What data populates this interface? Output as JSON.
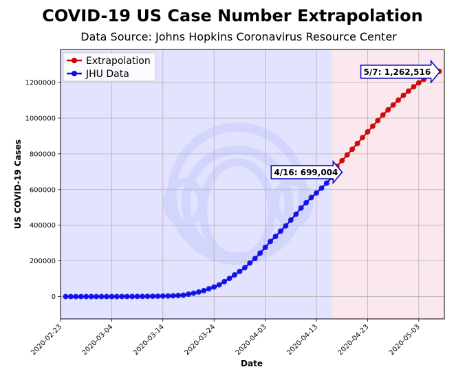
{
  "chart_data": {
    "type": "line",
    "title": "COVID-19 US Case Number Extrapolation",
    "subtitle": "Data Source: Johns Hopkins Coronavirus Resource Center",
    "xlabel": "Date",
    "ylabel": "US COVID-19 Cases",
    "x_ticks": [
      "2020-02-23",
      "2020-03-04",
      "2020-03-14",
      "2020-03-24",
      "2020-04-03",
      "2020-04-13",
      "2020-04-23",
      "2020-05-03"
    ],
    "y_ticks": [
      0,
      200000,
      400000,
      600000,
      800000,
      1000000,
      1200000
    ],
    "xlim": [
      "2020-02-23",
      "2020-05-08"
    ],
    "ylim": [
      -125000,
      1385000
    ],
    "grid": true,
    "legend_position": "top-left",
    "shaded_regions": [
      {
        "from": "2020-02-23",
        "to": "2020-04-16",
        "color": "#e3e3ff"
      },
      {
        "from": "2020-04-16",
        "to": "2020-05-08",
        "color": "#fbe7ee"
      }
    ],
    "series": [
      {
        "name": "JHU Data",
        "color": "#0a0ae6",
        "x": [
          "2020-02-24",
          "2020-02-25",
          "2020-02-26",
          "2020-02-27",
          "2020-02-28",
          "2020-02-29",
          "2020-03-01",
          "2020-03-02",
          "2020-03-03",
          "2020-03-04",
          "2020-03-05",
          "2020-03-06",
          "2020-03-07",
          "2020-03-08",
          "2020-03-09",
          "2020-03-10",
          "2020-03-11",
          "2020-03-12",
          "2020-03-13",
          "2020-03-14",
          "2020-03-15",
          "2020-03-16",
          "2020-03-17",
          "2020-03-18",
          "2020-03-19",
          "2020-03-20",
          "2020-03-21",
          "2020-03-22",
          "2020-03-23",
          "2020-03-24",
          "2020-03-25",
          "2020-03-26",
          "2020-03-27",
          "2020-03-28",
          "2020-03-29",
          "2020-03-30",
          "2020-03-31",
          "2020-04-01",
          "2020-04-02",
          "2020-04-03",
          "2020-04-04",
          "2020-04-05",
          "2020-04-06",
          "2020-04-07",
          "2020-04-08",
          "2020-04-09",
          "2020-04-10",
          "2020-04-11",
          "2020-04-12",
          "2020-04-13",
          "2020-04-14",
          "2020-04-15",
          "2020-04-16"
        ],
        "values": [
          50,
          60,
          60,
          60,
          60,
          70,
          80,
          100,
          120,
          160,
          230,
          330,
          430,
          550,
          750,
          1000,
          1300,
          1700,
          2200,
          2900,
          3500,
          4600,
          6400,
          7800,
          13700,
          19100,
          25500,
          33300,
          43800,
          53700,
          65800,
          83800,
          101700,
          121500,
          140900,
          161800,
          188200,
          213400,
          243800,
          275600,
          308900,
          337100,
          366700,
          396200,
          429100,
          461400,
          496500,
          526400,
          555300,
          580600,
          607700,
          636400,
          667800
        ]
      },
      {
        "name": "Extrapolation",
        "color": "#cc0000",
        "x": [
          "2020-04-16",
          "2020-04-17",
          "2020-04-18",
          "2020-04-19",
          "2020-04-20",
          "2020-04-21",
          "2020-04-22",
          "2020-04-23",
          "2020-04-24",
          "2020-04-25",
          "2020-04-26",
          "2020-04-27",
          "2020-04-28",
          "2020-04-29",
          "2020-04-30",
          "2020-05-01",
          "2020-05-02",
          "2020-05-03",
          "2020-05-04",
          "2020-05-05",
          "2020-05-06",
          "2020-05-07"
        ],
        "values": [
          699004,
          730000,
          762000,
          794000,
          826000,
          858000,
          891000,
          923000,
          955000,
          987000,
          1018000,
          1047000,
          1074000,
          1101000,
          1128000,
          1152000,
          1176000,
          1198000,
          1218000,
          1236000,
          1250000,
          1262516
        ]
      }
    ],
    "annotations": [
      {
        "x": "2020-04-16",
        "y": 699004,
        "text": "4/16: 699,004"
      },
      {
        "x": "2020-05-07",
        "y": 1262516,
        "text": "5/7: 1,262,516"
      }
    ]
  }
}
